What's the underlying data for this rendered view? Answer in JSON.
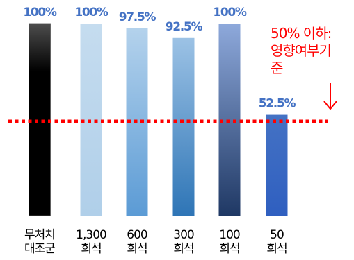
{
  "chart_data": {
    "type": "bar",
    "categories": [
      [
        "무처치",
        "대조군"
      ],
      [
        "1,300",
        "희석"
      ],
      [
        "600",
        "희석"
      ],
      [
        "300",
        "희석"
      ],
      [
        "100",
        "희석"
      ],
      [
        "50",
        "희석"
      ]
    ],
    "values": [
      100,
      100,
      97.5,
      92.5,
      100,
      52.5
    ],
    "value_labels": [
      "100%",
      "100%",
      "97.5%",
      "92.5%",
      "100%",
      "52.5%"
    ],
    "ylim": [
      0,
      100
    ],
    "threshold": 50,
    "threshold_color": "#ff0000",
    "annotation": [
      "50% 이하:",
      "영향여부기",
      "준"
    ],
    "annotation_color": "#ff0000",
    "value_label_color": "#4472c4",
    "grid": false,
    "legend": "none"
  }
}
